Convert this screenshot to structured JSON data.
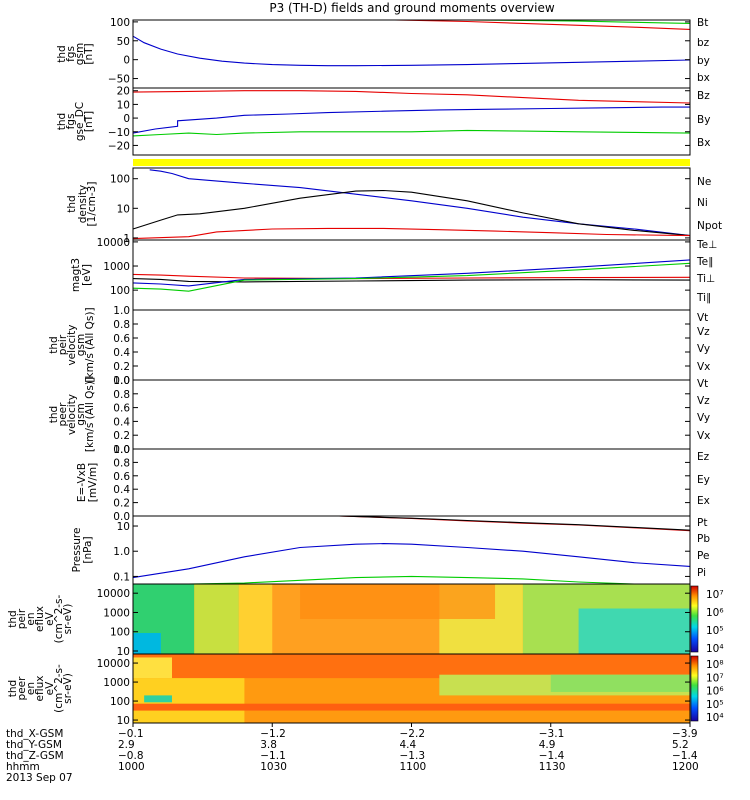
{
  "chart_data": {
    "type": "line",
    "title": "P3 (TH-D) fields and ground moments overview",
    "panels": [
      {
        "id": "fgs_gsm",
        "ylabel": [
          "thd",
          "fgs",
          "gsm",
          "[nT]"
        ],
        "ylim": [
          -75,
          105
        ],
        "ticks": [
          {
            "v": 100,
            "t": "100"
          },
          {
            "v": 50,
            "t": "50"
          },
          {
            "v": 0,
            "t": "0"
          },
          {
            "v": -50,
            "t": "−50"
          }
        ],
        "legend": [
          {
            "t": "Bt",
            "c": "#000000"
          },
          {
            "t": "bz",
            "c": "#e60000"
          },
          {
            "t": "by",
            "c": "#00cc00"
          },
          {
            "t": "bx",
            "c": "#0000cc"
          }
        ],
        "series": [
          {
            "name": "bx",
            "color": "#0000cc",
            "x": [
              0,
              0.02,
              0.05,
              0.08,
              0.12,
              0.16,
              0.2,
              0.25,
              0.3,
              0.35,
              0.4,
              0.5,
              0.6,
              0.7,
              0.8,
              0.9,
              1
            ],
            "y": [
              62,
              45,
              28,
              15,
              4,
              -4,
              -9,
              -13,
              -15,
              -16,
              -16,
              -15,
              -13,
              -10,
              -7,
              -4,
              -1
            ]
          },
          {
            "name": "bz",
            "color": "#e60000",
            "x": [
              0.47,
              0.6,
              0.7,
              0.8,
              0.9,
              1
            ],
            "y": [
              105,
              101,
              96,
              91,
              86,
              80
            ]
          },
          {
            "name": "by",
            "color": "#00cc00",
            "x": [
              0.6,
              0.7,
              0.8,
              0.9,
              1
            ],
            "y": [
              105,
              104,
              102,
              99,
              96
            ]
          }
        ]
      },
      {
        "id": "fgs_gse",
        "ylabel": [
          "thd",
          "fgs",
          "gse_DC",
          "[nT]"
        ],
        "ylim": [
          -27,
          22
        ],
        "ticks": [
          {
            "v": 20,
            "t": "20"
          },
          {
            "v": 10,
            "t": "10"
          },
          {
            "v": 0,
            "t": "0"
          },
          {
            "v": -10,
            "t": "−10"
          },
          {
            "v": -20,
            "t": "−20"
          }
        ],
        "legend": [
          {
            "t": "Bz",
            "c": "#e60000"
          },
          {
            "t": "By",
            "c": "#00cc00"
          },
          {
            "t": "Bx",
            "c": "#0000cc"
          }
        ],
        "series": [
          {
            "name": "Bz",
            "color": "#e60000",
            "x": [
              0,
              0.1,
              0.2,
              0.3,
              0.4,
              0.5,
              0.6,
              0.7,
              0.8,
              0.9,
              1
            ],
            "y": [
              19,
              19.5,
              20,
              20,
              19.5,
              18,
              17,
              15,
              13,
              12,
              11
            ]
          },
          {
            "name": "By",
            "color": "#00cc00",
            "x": [
              0,
              0.05,
              0.1,
              0.15,
              0.2,
              0.3,
              0.4,
              0.5,
              0.6,
              0.7,
              0.8,
              0.9,
              1
            ],
            "y": [
              -13,
              -12,
              -11,
              -12,
              -11,
              -10,
              -10,
              -10,
              -9,
              -9.5,
              -10,
              -10.5,
              -11
            ]
          },
          {
            "name": "Bx",
            "color": "#0000cc",
            "x": [
              0,
              0.04,
              0.08,
              0.08,
              0.15,
              0.2,
              0.28,
              0.35,
              0.45,
              0.55,
              0.65,
              0.75,
              0.85,
              0.95,
              1
            ],
            "y": [
              -11,
              -8,
              -6,
              -2,
              0,
              2,
              3,
              4,
              5,
              6,
              6.5,
              7,
              7.5,
              8,
              8
            ]
          }
        ]
      },
      {
        "id": "quality_bar",
        "kind": "bar",
        "color": "#ffff00"
      },
      {
        "id": "density",
        "ylabel": [
          "thd",
          "density",
          "[1/cm-3]"
        ],
        "scale": "log",
        "ylim": [
          0.85,
          230
        ],
        "ticks": [
          {
            "v": 100,
            "t": "100"
          },
          {
            "v": 10,
            "t": "10"
          },
          {
            "v": 1,
            "t": "1"
          }
        ],
        "legend": [
          {
            "t": "Ne",
            "c": "#e60000"
          },
          {
            "t": "Ni",
            "c": "#000000"
          },
          {
            "t": "Npot",
            "c": "#0000cc"
          }
        ],
        "series": [
          {
            "name": "Npot",
            "color": "#0000cc",
            "x": [
              0.03,
              0.05,
              0.07,
              0.1,
              0.2,
              0.3,
              0.4,
              0.5,
              0.6,
              0.7,
              0.8,
              0.9,
              1
            ],
            "y": [
              200,
              180,
              150,
              100,
              70,
              50,
              30,
              18,
              10,
              5,
              3,
              2,
              1.2
            ]
          },
          {
            "name": "Ni",
            "color": "#000000",
            "x": [
              0,
              0.05,
              0.08,
              0.12,
              0.2,
              0.3,
              0.4,
              0.45,
              0.5,
              0.6,
              0.7,
              0.8,
              0.9,
              1
            ],
            "y": [
              2,
              4,
              6,
              6.5,
              10,
              22,
              38,
              40,
              35,
              18,
              7,
              3,
              1.8,
              1.2
            ]
          },
          {
            "name": "Ne",
            "color": "#e60000",
            "x": [
              0,
              0.1,
              0.15,
              0.25,
              0.35,
              0.45,
              0.55,
              0.65,
              0.75,
              0.85,
              1
            ],
            "y": [
              0.95,
              1.1,
              1.6,
              2,
              2.1,
              2.1,
              1.9,
              1.7,
              1.5,
              1.3,
              1.2
            ]
          }
        ]
      },
      {
        "id": "magt3",
        "ylabel": [
          "magt3",
          "[eV]"
        ],
        "scale": "log",
        "ylim": [
          15,
          12000
        ],
        "ticks": [
          {
            "v": 10000,
            "t": "10000"
          },
          {
            "v": 1000,
            "t": "1000"
          },
          {
            "v": 100,
            "t": "100"
          }
        ],
        "legend": [
          {
            "t": "Te⊥",
            "c": "#e60000"
          },
          {
            "t": "Te∥",
            "c": "#000000"
          },
          {
            "t": "Ti⊥",
            "c": "#0000cc"
          },
          {
            "t": "Ti∥",
            "c": "#00cc00"
          }
        ],
        "series": [
          {
            "name": "Te⊥",
            "color": "#e60000",
            "x": [
              0,
              0.05,
              0.1,
              0.2,
              0.4,
              0.6,
              0.8,
              1
            ],
            "y": [
              450,
              420,
              380,
              320,
              300,
              320,
              330,
              340
            ]
          },
          {
            "name": "Te∥",
            "color": "#000000",
            "x": [
              0,
              0.05,
              0.1,
              0.2,
              0.4,
              0.6,
              0.8,
              1
            ],
            "y": [
              300,
              280,
              230,
              220,
              240,
              260,
              270,
              260
            ]
          },
          {
            "name": "Ti⊥",
            "color": "#0000cc",
            "x": [
              0,
              0.05,
              0.1,
              0.2,
              0.4,
              0.6,
              0.8,
              1
            ],
            "y": [
              200,
              180,
              150,
              280,
              320,
              500,
              900,
              1800
            ]
          },
          {
            "name": "Ti∥",
            "color": "#00cc00",
            "x": [
              0,
              0.05,
              0.1,
              0.2,
              0.4,
              0.6,
              0.8,
              1
            ],
            "y": [
              120,
              110,
              90,
              260,
              300,
              400,
              700,
              1300
            ]
          }
        ]
      },
      {
        "id": "peir_velocity",
        "ylabel": [
          "thd",
          "peir",
          "velocity",
          "gsm",
          "[km/s (All Qs)]"
        ],
        "ylim": [
          0,
          1.0
        ],
        "ticks": [
          {
            "v": 1.0,
            "t": "1.0"
          },
          {
            "v": 0.8,
            "t": "0.8"
          },
          {
            "v": 0.6,
            "t": "0.6"
          },
          {
            "v": 0.4,
            "t": "0.4"
          },
          {
            "v": 0.2,
            "t": "0.2"
          },
          {
            "v": 0.0,
            "t": "0.0"
          }
        ],
        "legend": [
          {
            "t": "Vt",
            "c": "#000000"
          },
          {
            "t": "Vz",
            "c": "#e60000"
          },
          {
            "t": "Vy",
            "c": "#00cc00"
          },
          {
            "t": "Vx",
            "c": "#0000cc"
          }
        ],
        "series": []
      },
      {
        "id": "peer_velocity",
        "ylabel": [
          "thd",
          "peer",
          "velocity",
          "gsm",
          "[km/s (All Qs)]"
        ],
        "ylim": [
          0,
          1.0
        ],
        "ticks": [
          {
            "v": 1.0,
            "t": "1.0"
          },
          {
            "v": 0.8,
            "t": "0.8"
          },
          {
            "v": 0.6,
            "t": "0.6"
          },
          {
            "v": 0.4,
            "t": "0.4"
          },
          {
            "v": 0.2,
            "t": "0.2"
          },
          {
            "v": 0.0,
            "t": "0.0"
          }
        ],
        "legend": [
          {
            "t": "Vt",
            "c": "#000000"
          },
          {
            "t": "Vz",
            "c": "#e60000"
          },
          {
            "t": "Vy",
            "c": "#00cc00"
          },
          {
            "t": "Vx",
            "c": "#0000cc"
          }
        ],
        "series": []
      },
      {
        "id": "efield",
        "ylabel": [
          "E=-VxB",
          "[mV/m]"
        ],
        "ylim": [
          0,
          1.0
        ],
        "ticks": [
          {
            "v": 1.0,
            "t": "1.0"
          },
          {
            "v": 0.8,
            "t": "0.8"
          },
          {
            "v": 0.6,
            "t": "0.6"
          },
          {
            "v": 0.4,
            "t": "0.4"
          },
          {
            "v": 0.2,
            "t": "0.2"
          },
          {
            "v": 0.0,
            "t": "0.0"
          }
        ],
        "legend": [
          {
            "t": "Ez",
            "c": "#e60000"
          },
          {
            "t": "Ey",
            "c": "#00cc00"
          },
          {
            "t": "Ex",
            "c": "#0000cc"
          }
        ],
        "series": []
      },
      {
        "id": "pressure",
        "ylabel": [
          "Pressure",
          "[nPa]"
        ],
        "scale": "log",
        "ylim": [
          0.05,
          25
        ],
        "ticks": [
          {
            "v": 10,
            "t": "10"
          },
          {
            "v": 1,
            "t": "1.0"
          },
          {
            "v": 0.1,
            "t": "0.1"
          }
        ],
        "legend": [
          {
            "t": "Pt",
            "c": "#000000"
          },
          {
            "t": "Pb",
            "c": "#e60000"
          },
          {
            "t": "Pe",
            "c": "#00cc00"
          },
          {
            "t": "Pi",
            "c": "#0000cc"
          }
        ],
        "series": [
          {
            "name": "Pi",
            "color": "#0000cc",
            "x": [
              0,
              0.1,
              0.2,
              0.3,
              0.4,
              0.45,
              0.5,
              0.6,
              0.7,
              0.8,
              0.9,
              1
            ],
            "y": [
              0.09,
              0.2,
              0.6,
              1.4,
              1.9,
              2,
              1.9,
              1.4,
              1,
              0.6,
              0.35,
              0.25
            ]
          },
          {
            "name": "Pe",
            "color": "#00cc00",
            "x": [
              0,
              0.1,
              0.2,
              0.3,
              0.4,
              0.5,
              0.6,
              0.7,
              0.8,
              0.9,
              1
            ],
            "y": [
              0.05,
              0.05,
              0.055,
              0.07,
              0.09,
              0.1,
              0.09,
              0.08,
              0.06,
              0.05,
              0.05
            ]
          },
          {
            "name": "Pb",
            "color": "#e60000",
            "x": [
              0.37,
              0.5,
              0.6,
              0.7,
              0.8,
              0.9,
              1
            ],
            "y": [
              25,
              20,
              16,
              13,
              11,
              8.5,
              6.5
            ]
          },
          {
            "name": "Pt",
            "color": "#000000",
            "x": [
              0.37,
              0.5,
              0.6,
              0.7,
              0.8,
              0.9,
              1
            ],
            "y": [
              25,
              20.5,
              16.5,
              13.5,
              11.3,
              8.8,
              6.8
            ]
          }
        ]
      },
      {
        "id": "peir_eflux",
        "kind": "spectrogram",
        "ylabel": [
          "thd",
          "peir",
          "en",
          "eflux",
          "eV",
          "(cm^2-s-",
          "sr-eV)"
        ],
        "scale": "log",
        "ylim": [
          7,
          30000
        ],
        "ticks": [
          {
            "v": 10000,
            "t": "10000"
          },
          {
            "v": 1000,
            "t": "1000"
          },
          {
            "v": 100,
            "t": "100"
          },
          {
            "v": 10,
            "t": "10"
          }
        ],
        "colorbar": {
          "ticks": [
            "10⁷",
            "10⁶",
            "10⁵",
            "10⁴"
          ]
        }
      },
      {
        "id": "peer_eflux",
        "kind": "spectrogram",
        "ylabel": [
          "thd",
          "peer",
          "en",
          "eflux",
          "eV",
          "(cm^2-s-",
          "sr-eV)"
        ],
        "scale": "log",
        "ylim": [
          7,
          30000
        ],
        "ticks": [
          {
            "v": 10000,
            "t": "10000"
          },
          {
            "v": 1000,
            "t": "1000"
          },
          {
            "v": 100,
            "t": "100"
          },
          {
            "v": 10,
            "t": "10"
          }
        ],
        "colorbar": {
          "ticks": [
            "10⁸",
            "10⁷",
            "10⁶",
            "10⁵",
            "10⁴"
          ]
        }
      }
    ],
    "x_axis": {
      "row_labels": [
        "thd_X-GSM",
        "thd_Y-GSM",
        "thd_Z-GSM",
        "hhmm",
        "2013 Sep 07"
      ],
      "columns": [
        {
          "x": 0,
          "vals": [
            "−0.1",
            "2.9",
            "−0.8",
            "1000"
          ]
        },
        {
          "x": 0.25,
          "vals": [
            "−1.2",
            "3.8",
            "−1.1",
            "1030"
          ]
        },
        {
          "x": 0.5,
          "vals": [
            "−2.2",
            "4.4",
            "−1.3",
            "1100"
          ]
        },
        {
          "x": 0.75,
          "vals": [
            "−3.1",
            "4.9",
            "−1.4",
            "1130"
          ]
        },
        {
          "x": 1,
          "vals": [
            "−3.9",
            "5.2",
            "−1.4",
            "1200"
          ]
        }
      ]
    }
  }
}
